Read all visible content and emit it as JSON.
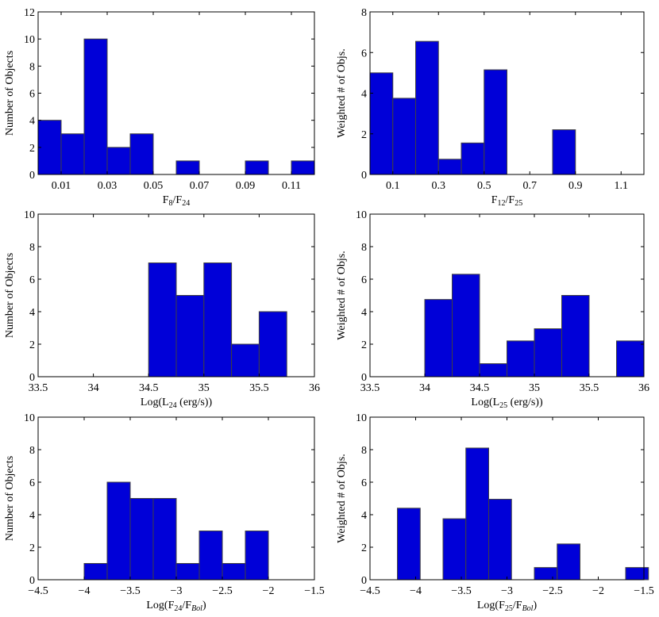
{
  "chart_data": [
    {
      "type": "bar",
      "title": "",
      "ylabel": "Number of Objects",
      "xlabel": {
        "base": "F",
        "sub1": "8",
        "mid": "/F",
        "sub2": "24",
        "tail": ""
      },
      "xlim": [
        0.0,
        0.12
      ],
      "ylim": [
        0,
        12
      ],
      "xticks": [
        0.01,
        0.03,
        0.05,
        0.07,
        0.09,
        0.11
      ],
      "xtick_labels": [
        "0.01",
        "0.03",
        "0.05",
        "0.07",
        "0.09",
        "0.11"
      ],
      "yticks": [
        0,
        2,
        4,
        6,
        8,
        10,
        12
      ],
      "ytick_labels": [
        "0",
        "2",
        "4",
        "6",
        "8",
        "10",
        "12"
      ],
      "bins": [
        {
          "x0": 0.0,
          "x1": 0.01,
          "value": 4
        },
        {
          "x0": 0.01,
          "x1": 0.02,
          "value": 3
        },
        {
          "x0": 0.02,
          "x1": 0.03,
          "value": 10
        },
        {
          "x0": 0.03,
          "x1": 0.04,
          "value": 2
        },
        {
          "x0": 0.04,
          "x1": 0.05,
          "value": 3
        },
        {
          "x0": 0.06,
          "x1": 0.07,
          "value": 1
        },
        {
          "x0": 0.09,
          "x1": 0.1,
          "value": 1
        },
        {
          "x0": 0.11,
          "x1": 0.12,
          "value": 1
        }
      ]
    },
    {
      "type": "bar",
      "title": "",
      "ylabel": "Weighted # of Objs.",
      "xlabel": {
        "base": "F",
        "sub1": "12",
        "mid": "/F",
        "sub2": "25",
        "tail": ""
      },
      "xlim": [
        0.0,
        1.2
      ],
      "ylim": [
        0,
        8
      ],
      "xticks": [
        0.1,
        0.3,
        0.5,
        0.7,
        0.9,
        1.1
      ],
      "xtick_labels": [
        "0.1",
        "0.3",
        "0.5",
        "0.7",
        "0.9",
        "1.1"
      ],
      "yticks": [
        0,
        2,
        4,
        6,
        8
      ],
      "ytick_labels": [
        "0",
        "2",
        "4",
        "6",
        "8"
      ],
      "bins": [
        {
          "x0": 0.0,
          "x1": 0.1,
          "value": 5.0
        },
        {
          "x0": 0.1,
          "x1": 0.2,
          "value": 3.75
        },
        {
          "x0": 0.2,
          "x1": 0.3,
          "value": 6.55
        },
        {
          "x0": 0.3,
          "x1": 0.4,
          "value": 0.75
        },
        {
          "x0": 0.4,
          "x1": 0.5,
          "value": 1.55
        },
        {
          "x0": 0.5,
          "x1": 0.6,
          "value": 5.15
        },
        {
          "x0": 0.8,
          "x1": 0.9,
          "value": 2.2
        }
      ]
    },
    {
      "type": "bar",
      "title": "",
      "ylabel": "Number of Objects",
      "xlabel": {
        "base": "Log(L",
        "sub1": "24",
        "mid": " (erg/s))",
        "sub2": "",
        "tail": ""
      },
      "xlim": [
        33.5,
        36
      ],
      "ylim": [
        0,
        10
      ],
      "xticks": [
        33.5,
        34,
        34.5,
        35,
        35.5,
        36
      ],
      "xtick_labels": [
        "33.5",
        "34",
        "34.5",
        "35",
        "35.5",
        "36"
      ],
      "yticks": [
        0,
        2,
        4,
        6,
        8,
        10
      ],
      "ytick_labels": [
        "0",
        "2",
        "4",
        "6",
        "8",
        "10"
      ],
      "bins": [
        {
          "x0": 34.5,
          "x1": 34.75,
          "value": 7
        },
        {
          "x0": 34.75,
          "x1": 35.0,
          "value": 5
        },
        {
          "x0": 35.0,
          "x1": 35.25,
          "value": 7
        },
        {
          "x0": 35.25,
          "x1": 35.5,
          "value": 2
        },
        {
          "x0": 35.5,
          "x1": 35.75,
          "value": 4
        }
      ]
    },
    {
      "type": "bar",
      "title": "",
      "ylabel": "Weighted # of Objs.",
      "xlabel": {
        "base": "Log(L",
        "sub1": "25",
        "mid": " (erg/s))",
        "sub2": "",
        "tail": ""
      },
      "xlim": [
        33.5,
        36
      ],
      "ylim": [
        0,
        10
      ],
      "xticks": [
        33.5,
        34,
        34.5,
        35,
        35.5,
        36
      ],
      "xtick_labels": [
        "33.5",
        "34",
        "34.5",
        "35",
        "35.5",
        "36"
      ],
      "yticks": [
        0,
        2,
        4,
        6,
        8,
        10
      ],
      "ytick_labels": [
        "0",
        "2",
        "4",
        "6",
        "8",
        "10"
      ],
      "bins": [
        {
          "x0": 34.0,
          "x1": 34.25,
          "value": 4.75
        },
        {
          "x0": 34.25,
          "x1": 34.5,
          "value": 6.3
        },
        {
          "x0": 34.5,
          "x1": 34.75,
          "value": 0.8
        },
        {
          "x0": 34.75,
          "x1": 35.0,
          "value": 2.2
        },
        {
          "x0": 35.0,
          "x1": 35.25,
          "value": 2.95
        },
        {
          "x0": 35.25,
          "x1": 35.5,
          "value": 5.0
        },
        {
          "x0": 35.75,
          "x1": 36.0,
          "value": 2.2
        }
      ]
    },
    {
      "type": "bar",
      "title": "",
      "ylabel": "Number of Objects",
      "xlabel": {
        "base": "Log(F",
        "sub1": "24",
        "mid": "/F",
        "sub2": "Bol",
        "tail": ")"
      },
      "xlim": [
        -4.5,
        -1.5
      ],
      "ylim": [
        0,
        10
      ],
      "xticks": [
        -4.5,
        -4,
        -3.5,
        -3,
        -2.5,
        -2,
        -1.5
      ],
      "xtick_labels": [
        "−4.5",
        "−4",
        "−3.5",
        "−3",
        "−2.5",
        "−2",
        "−1.5"
      ],
      "yticks": [
        0,
        2,
        4,
        6,
        8,
        10
      ],
      "ytick_labels": [
        "0",
        "2",
        "4",
        "6",
        "8",
        "10"
      ],
      "bins": [
        {
          "x0": -4.0,
          "x1": -3.75,
          "value": 1
        },
        {
          "x0": -3.75,
          "x1": -3.5,
          "value": 6
        },
        {
          "x0": -3.5,
          "x1": -3.25,
          "value": 5
        },
        {
          "x0": -3.25,
          "x1": -3.0,
          "value": 5
        },
        {
          "x0": -3.0,
          "x1": -2.75,
          "value": 1
        },
        {
          "x0": -2.75,
          "x1": -2.5,
          "value": 3
        },
        {
          "x0": -2.5,
          "x1": -2.25,
          "value": 1
        },
        {
          "x0": -2.25,
          "x1": -2.0,
          "value": 3
        }
      ]
    },
    {
      "type": "bar",
      "title": "",
      "ylabel": "Weighted # of Objs.",
      "xlabel": {
        "base": "Log(F",
        "sub1": "25",
        "mid": "/F",
        "sub2": "Bol",
        "tail": ")"
      },
      "xlim": [
        -4.5,
        -1.5
      ],
      "ylim": [
        0,
        10
      ],
      "xticks": [
        -4.5,
        -4,
        -3.5,
        -3,
        -2.5,
        -2,
        -1.5
      ],
      "xtick_labels": [
        "−4.5",
        "−4",
        "−3.5",
        "−3",
        "−2.5",
        "−2",
        "−1.5"
      ],
      "yticks": [
        0,
        2,
        4,
        6,
        8,
        10
      ],
      "ytick_labels": [
        "0",
        "2",
        "4",
        "6",
        "8",
        "10"
      ],
      "bins": [
        {
          "x0": -4.2,
          "x1": -3.95,
          "value": 4.4
        },
        {
          "x0": -3.7,
          "x1": -3.45,
          "value": 3.75
        },
        {
          "x0": -3.45,
          "x1": -3.2,
          "value": 8.1
        },
        {
          "x0": -3.2,
          "x1": -2.95,
          "value": 4.95
        },
        {
          "x0": -2.7,
          "x1": -2.45,
          "value": 0.75
        },
        {
          "x0": -2.45,
          "x1": -2.2,
          "value": 2.2
        },
        {
          "x0": -1.7,
          "x1": -1.45,
          "value": 0.75
        }
      ]
    }
  ]
}
